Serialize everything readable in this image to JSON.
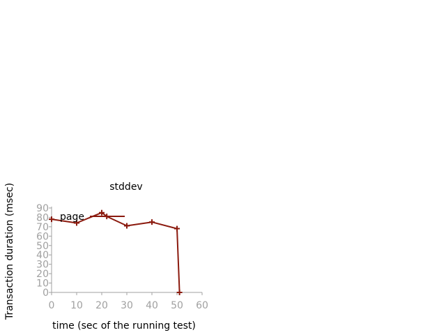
{
  "chart_data": {
    "type": "line",
    "title": "stddev",
    "xlabel": "time (sec of the running test)",
    "ylabel": "Transaction duration (msec)",
    "xlim": [
      0,
      60
    ],
    "ylim": [
      0,
      90
    ],
    "xticks": [
      0,
      10,
      20,
      30,
      40,
      50,
      60
    ],
    "yticks": [
      0,
      10,
      20,
      30,
      40,
      50,
      60,
      70,
      80,
      90
    ],
    "grid": false,
    "legend_position": "top-left",
    "series": [
      {
        "name": "page",
        "color": "#8b1a0e",
        "marker": "plus",
        "x": [
          0,
          10,
          20,
          22,
          30,
          40,
          50,
          51
        ],
        "y": [
          78,
          74,
          85,
          81,
          71,
          75,
          68,
          0
        ]
      }
    ]
  }
}
